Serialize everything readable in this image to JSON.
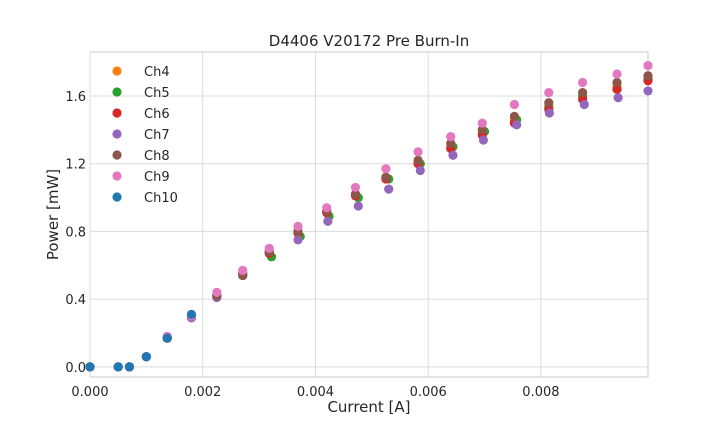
{
  "chart_data": {
    "type": "scatter",
    "title": "D4406 V20172 Pre Burn-In",
    "xlabel": "Current [A]",
    "ylabel": "Power [mW]",
    "xlim": [
      0,
      0.0099
    ],
    "ylim": [
      -0.06,
      1.86
    ],
    "xticks": [
      0,
      0.002,
      0.004,
      0.006,
      0.008
    ],
    "xtick_labels": [
      "0.000",
      "0.002",
      "0.004",
      "0.006",
      "0.008"
    ],
    "yticks": [
      0,
      0.4,
      0.8,
      1.2,
      1.6
    ],
    "ytick_labels": [
      "0.0",
      "0.4",
      "0.8",
      "1.2",
      "1.6"
    ],
    "grid": true,
    "legend_position": "top-left",
    "series": [
      {
        "name": "Ch4",
        "color": "#ff7f0e",
        "x": [
          0,
          0.0005,
          0.0007,
          0.001,
          0.00137,
          0.0018,
          0.00225,
          0.00271,
          0.00318,
          0.00369,
          0.0042,
          0.00471,
          0.00525,
          0.00582,
          0.0064,
          0.00696,
          0.00753,
          0.00814,
          0.00874,
          0.00935,
          0.0099
        ],
        "y": [
          0,
          0,
          0,
          0.06,
          0.17,
          0.3,
          0.42,
          0.55,
          0.68,
          0.8,
          0.92,
          1.02,
          1.12,
          1.21,
          1.3,
          1.38,
          1.46,
          1.54,
          1.6,
          1.66,
          1.7
        ]
      },
      {
        "name": "Ch5",
        "color": "#2ca02c",
        "x": [
          0,
          0.0005,
          0.0007,
          0.001,
          0.00137,
          0.0018,
          0.00225,
          0.00271,
          0.00322,
          0.00373,
          0.00424,
          0.00476,
          0.0053,
          0.00586,
          0.00644,
          0.007,
          0.00757,
          0.00814,
          0.00874,
          0.00935,
          0.0099
        ],
        "y": [
          0,
          0,
          0,
          0.06,
          0.17,
          0.3,
          0.42,
          0.54,
          0.65,
          0.77,
          0.89,
          1.0,
          1.11,
          1.2,
          1.3,
          1.39,
          1.46,
          1.53,
          1.6,
          1.64,
          1.7
        ]
      },
      {
        "name": "Ch6",
        "color": "#d62728",
        "x": [
          0,
          0.0005,
          0.0007,
          0.001,
          0.00137,
          0.0018,
          0.00225,
          0.00271,
          0.00318,
          0.00369,
          0.0042,
          0.00471,
          0.00525,
          0.00582,
          0.0064,
          0.00696,
          0.00753,
          0.00814,
          0.00874,
          0.00935,
          0.0099
        ],
        "y": [
          0,
          0,
          0,
          0.06,
          0.17,
          0.29,
          0.42,
          0.55,
          0.67,
          0.79,
          0.91,
          1.01,
          1.11,
          1.2,
          1.29,
          1.37,
          1.44,
          1.52,
          1.58,
          1.64,
          1.69
        ]
      },
      {
        "name": "Ch7",
        "color": "#9467bd",
        "x": [
          0,
          0.0005,
          0.0007,
          0.001,
          0.00137,
          0.0018,
          0.00225,
          0.00271,
          0.00318,
          0.00369,
          0.00422,
          0.00476,
          0.0053,
          0.00586,
          0.00644,
          0.00698,
          0.00757,
          0.00815,
          0.00877,
          0.00937,
          0.0099
        ],
        "y": [
          0,
          0,
          0,
          0.06,
          0.17,
          0.29,
          0.41,
          0.55,
          0.68,
          0.75,
          0.86,
          0.95,
          1.05,
          1.16,
          1.25,
          1.34,
          1.43,
          1.5,
          1.55,
          1.59,
          1.63
        ]
      },
      {
        "name": "Ch8",
        "color": "#8c564b",
        "x": [
          0,
          0.0005,
          0.0007,
          0.001,
          0.00137,
          0.0018,
          0.00225,
          0.00271,
          0.00318,
          0.00369,
          0.0042,
          0.00471,
          0.00525,
          0.00582,
          0.0064,
          0.00696,
          0.00753,
          0.00814,
          0.00874,
          0.00935,
          0.0099
        ],
        "y": [
          0,
          0,
          0,
          0.06,
          0.17,
          0.3,
          0.42,
          0.54,
          0.68,
          0.8,
          0.92,
          1.02,
          1.12,
          1.22,
          1.32,
          1.4,
          1.48,
          1.56,
          1.62,
          1.68,
          1.72
        ]
      },
      {
        "name": "Ch9",
        "color": "#e377c2",
        "x": [
          0,
          0.0005,
          0.0007,
          0.001,
          0.00137,
          0.0018,
          0.00225,
          0.00271,
          0.00318,
          0.00369,
          0.0042,
          0.00471,
          0.00525,
          0.00582,
          0.0064,
          0.00696,
          0.00753,
          0.00814,
          0.00874,
          0.00935,
          0.0099
        ],
        "y": [
          0,
          0,
          0,
          0.06,
          0.18,
          0.3,
          0.44,
          0.57,
          0.7,
          0.83,
          0.94,
          1.06,
          1.17,
          1.27,
          1.36,
          1.44,
          1.55,
          1.62,
          1.68,
          1.73,
          1.78
        ]
      },
      {
        "name": "Ch10",
        "color": "#1f77b4",
        "x": [
          0,
          0.0005,
          0.0007,
          0.001,
          0.00137,
          0.0018
        ],
        "y": [
          0,
          0,
          0,
          0.06,
          0.17,
          0.31
        ]
      }
    ]
  }
}
